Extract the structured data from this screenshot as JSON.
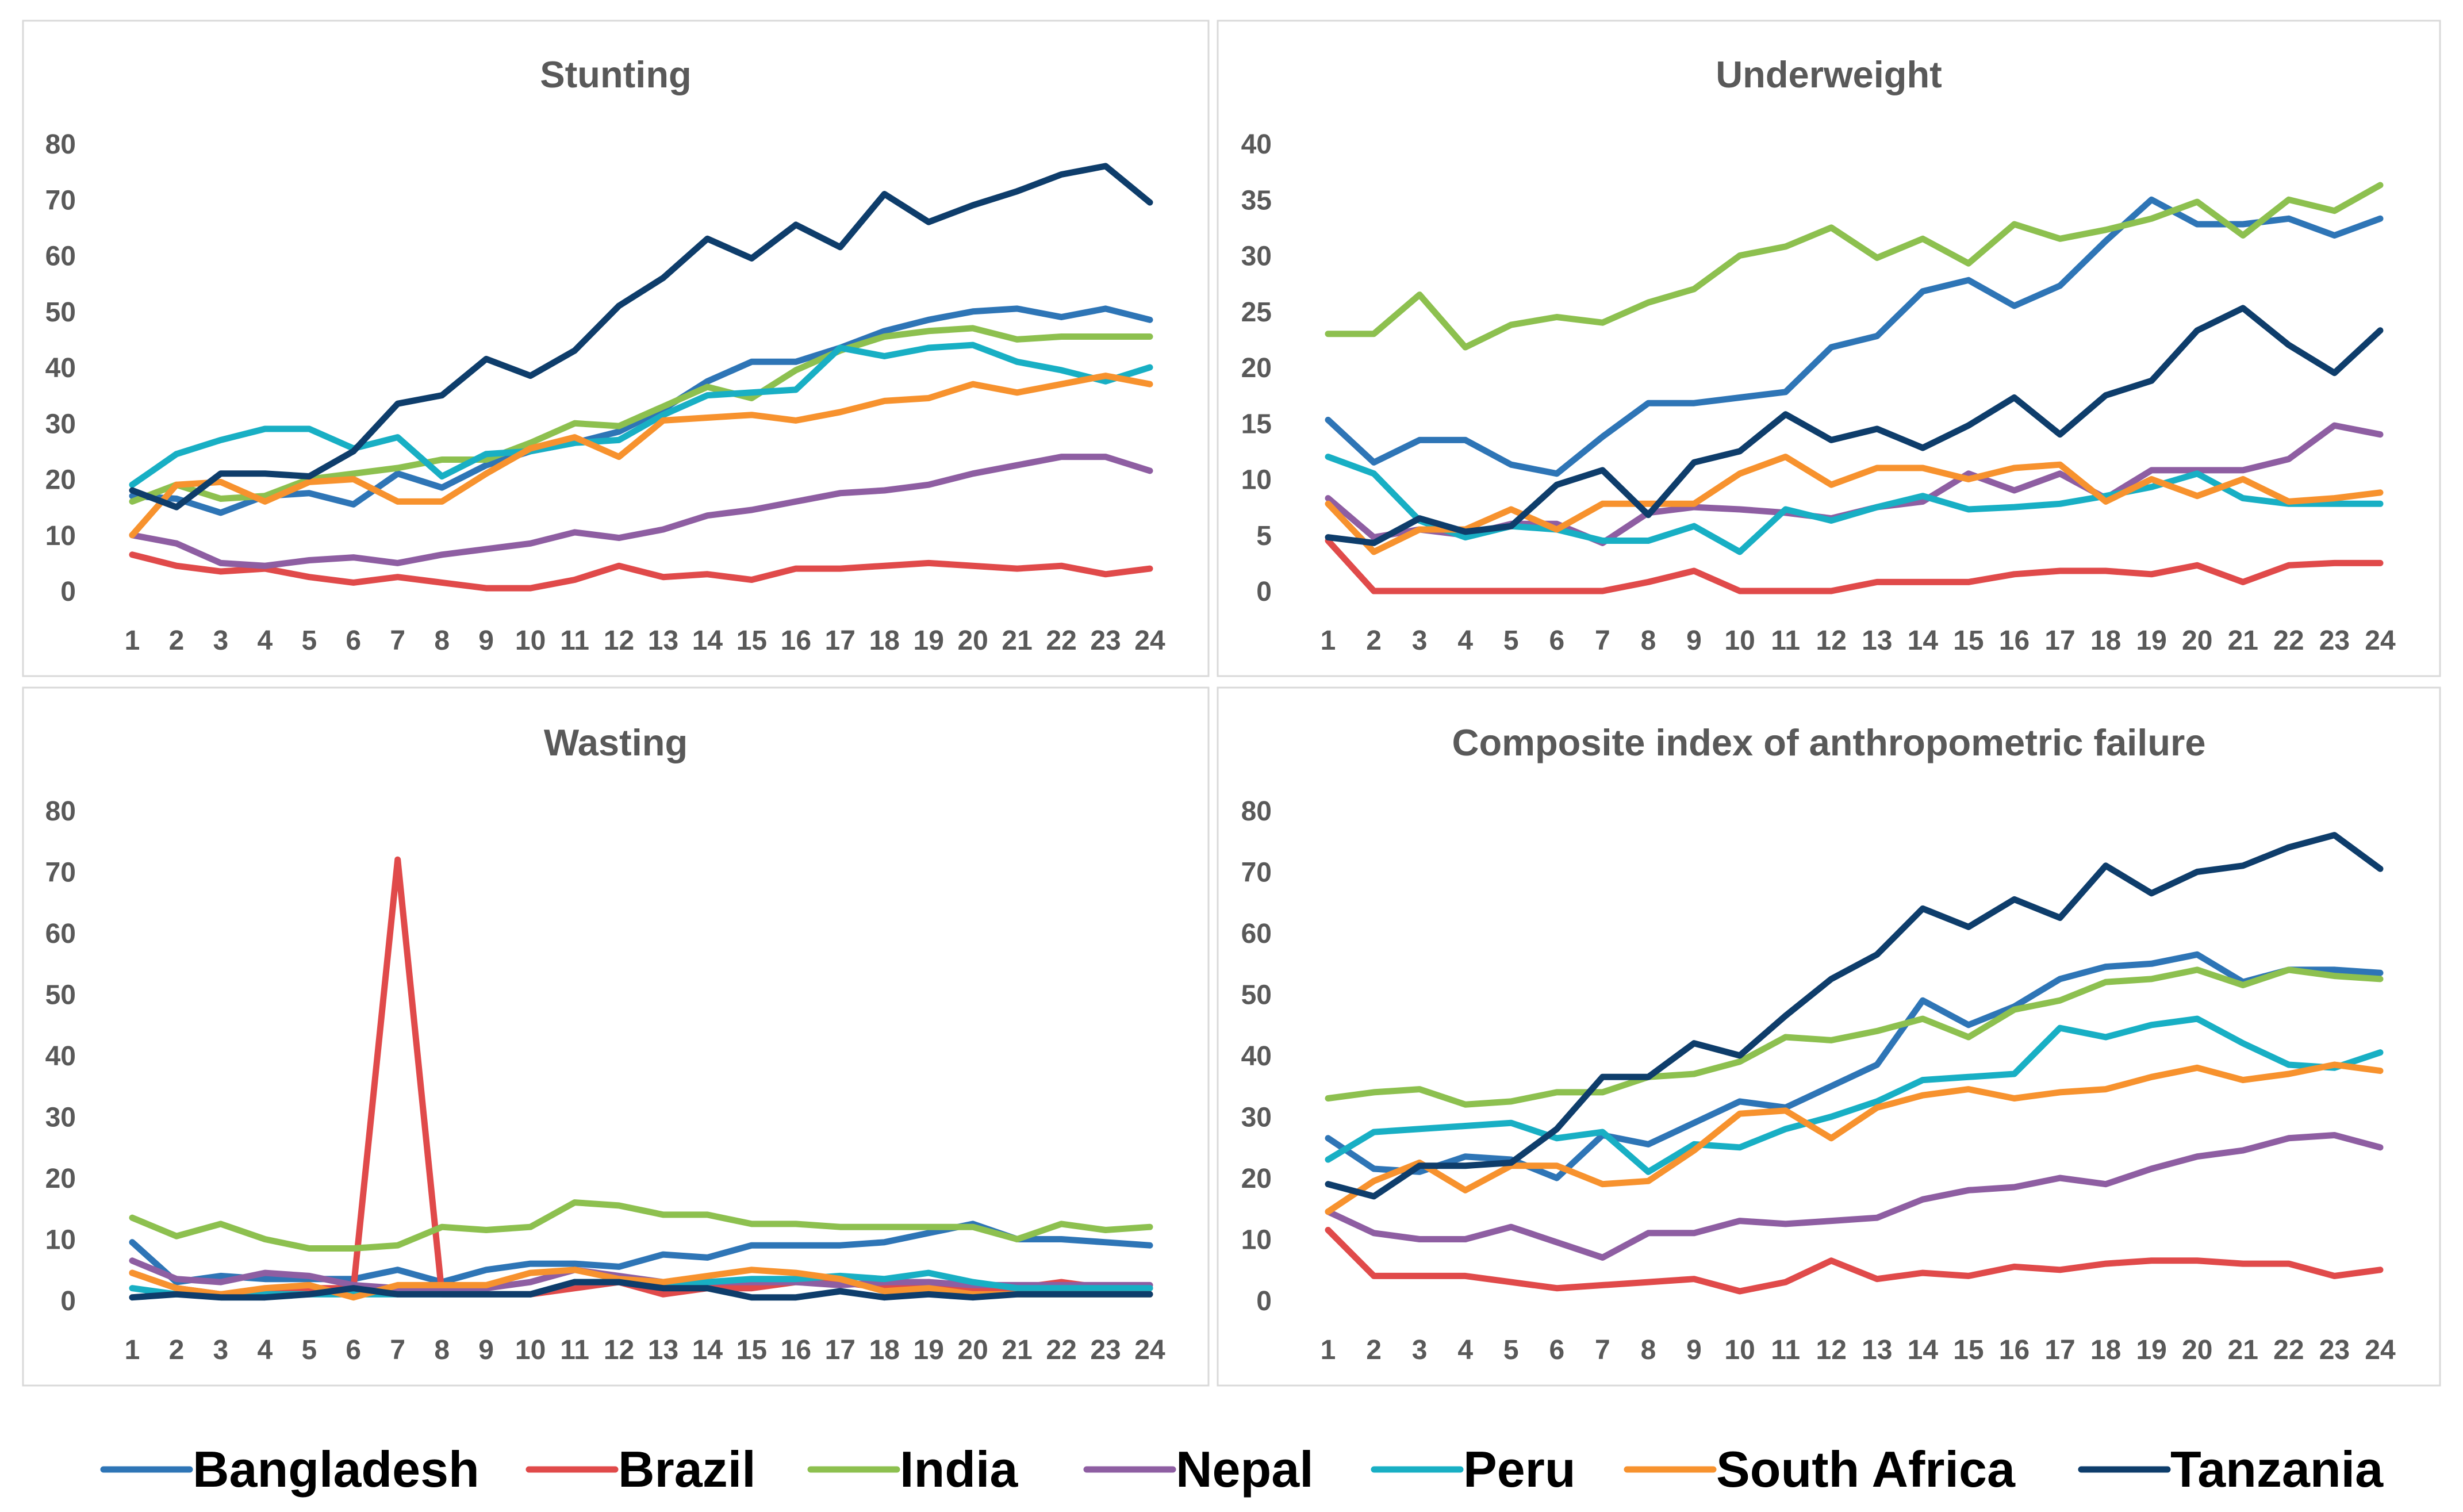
{
  "colors": {
    "Bangladesh": "#2E75B6",
    "Brazil": "#E04A4A",
    "India": "#8DC04F",
    "Nepal": "#8E5EA2",
    "Peru": "#18AFC4",
    "South Africa": "#F7922E",
    "Tanzania": "#0E3D6B"
  },
  "legend": [
    "Bangladesh",
    "Brazil",
    "India",
    "Nepal",
    "Peru",
    "South Africa",
    "Tanzania"
  ],
  "chart_data": [
    {
      "type": "line",
      "title": "Stunting",
      "x": [
        1,
        2,
        3,
        4,
        5,
        6,
        7,
        8,
        9,
        10,
        11,
        12,
        13,
        14,
        15,
        16,
        17,
        18,
        19,
        20,
        21,
        22,
        23,
        24
      ],
      "x_tick_labels": [
        "1",
        "2",
        "3",
        "4",
        "5",
        "6",
        "7",
        "8",
        "9",
        "10",
        "11",
        "12",
        "13",
        "14",
        "15",
        "16",
        "17",
        "18",
        "19",
        "20",
        "21",
        "22",
        "23",
        "24"
      ],
      "ylim": [
        0,
        80
      ],
      "y_ticks": [
        0,
        10,
        20,
        30,
        40,
        50,
        60,
        70,
        80
      ],
      "y_tick_labels": [
        "0",
        "10",
        "20",
        "30",
        "40",
        "50",
        "60",
        "70",
        "80"
      ],
      "series": [
        {
          "name": "Bangladesh",
          "values": [
            17,
            16.5,
            14,
            17,
            17.5,
            15.5,
            21,
            18.5,
            22.5,
            25,
            26.5,
            28.5,
            32.5,
            37.5,
            41,
            41,
            43.5,
            46.5,
            48.5,
            50,
            50.5,
            49,
            50.5,
            48.5
          ]
        },
        {
          "name": "Brazil",
          "values": [
            6.5,
            4.5,
            3.5,
            4,
            2.5,
            1.5,
            2.5,
            1.5,
            0.5,
            0.5,
            2,
            4.5,
            2.5,
            3,
            2,
            4,
            4,
            4.5,
            5,
            4.5,
            4,
            4.5,
            3,
            4
          ]
        },
        {
          "name": "India",
          "values": [
            16,
            19,
            16.5,
            17,
            20,
            21,
            22,
            23.5,
            23.5,
            26.5,
            30,
            29.5,
            33,
            36.5,
            34.5,
            39.5,
            43,
            45.5,
            46.5,
            47,
            45,
            45.5,
            45.5,
            45.5
          ]
        },
        {
          "name": "Nepal",
          "values": [
            10,
            8.5,
            5,
            4.5,
            5.5,
            6,
            5,
            6.5,
            7.5,
            8.5,
            10.5,
            9.5,
            11,
            13.5,
            14.5,
            16,
            17.5,
            18,
            19,
            21,
            22.5,
            24,
            24,
            21.5
          ]
        },
        {
          "name": "Peru",
          "values": [
            19,
            24.5,
            27,
            29,
            29,
            25.5,
            27.5,
            20.5,
            24.5,
            25,
            26.5,
            27,
            31.5,
            35,
            35.5,
            36,
            43.5,
            42,
            43.5,
            44,
            41,
            39.5,
            37.5,
            40
          ]
        },
        {
          "name": "South Africa",
          "values": [
            10,
            19,
            19.5,
            16,
            19.5,
            20,
            16,
            16,
            21,
            25.5,
            27.5,
            24,
            30.5,
            31,
            31.5,
            30.5,
            32,
            34,
            34.5,
            37,
            35.5,
            37,
            38.5,
            37
          ]
        },
        {
          "name": "Tanzania",
          "values": [
            18,
            15,
            21,
            21,
            20.5,
            25,
            33.5,
            35,
            41.5,
            38.5,
            43,
            51,
            56,
            63,
            59.5,
            65.5,
            61.5,
            71,
            66,
            69,
            71.5,
            74.5,
            76,
            69.5
          ]
        }
      ]
    },
    {
      "type": "line",
      "title": "Underweight",
      "x": [
        1,
        2,
        3,
        4,
        5,
        6,
        7,
        8,
        9,
        10,
        11,
        12,
        13,
        14,
        15,
        16,
        17,
        18,
        19,
        20,
        21,
        22,
        23,
        24
      ],
      "x_tick_labels": [
        "1",
        "2",
        "3",
        "4",
        "5",
        "6",
        "7",
        "8",
        "9",
        "10",
        "11",
        "12",
        "13",
        "14",
        "15",
        "16",
        "17",
        "18",
        "19",
        "20",
        "21",
        "22",
        "23",
        "24"
      ],
      "ylim": [
        0,
        40
      ],
      "y_ticks": [
        0,
        5,
        10,
        15,
        20,
        25,
        30,
        35,
        40
      ],
      "y_tick_labels": [
        "0",
        "5",
        "10",
        "15",
        "20",
        "25",
        "30",
        "35",
        "40"
      ],
      "series": [
        {
          "name": "Bangladesh",
          "values": [
            15.3,
            11.5,
            13.5,
            13.5,
            11.3,
            10.5,
            13.8,
            16.8,
            16.8,
            17.3,
            17.8,
            21.8,
            22.8,
            26.8,
            27.8,
            25.5,
            27.3,
            31.3,
            35,
            32.8,
            32.8,
            33.3,
            31.8,
            33.3
          ]
        },
        {
          "name": "Brazil",
          "values": [
            4.5,
            0,
            0,
            0,
            0,
            0,
            0,
            0.8,
            1.8,
            0,
            0,
            0,
            0.8,
            0.8,
            0.8,
            1.5,
            1.8,
            1.8,
            1.5,
            2.3,
            0.8,
            2.3,
            2.5,
            2.5
          ]
        },
        {
          "name": "India",
          "values": [
            23,
            23,
            26.5,
            21.8,
            23.8,
            24.5,
            24,
            25.8,
            27,
            30,
            30.8,
            32.5,
            29.8,
            31.5,
            29.3,
            32.8,
            31.5,
            32.3,
            33.3,
            34.8,
            31.8,
            35,
            34,
            36.3
          ]
        },
        {
          "name": "Nepal",
          "values": [
            8.3,
            4.8,
            5.5,
            5,
            6,
            6,
            4.3,
            7,
            7.5,
            7.3,
            7,
            6.5,
            7.5,
            8,
            10.5,
            9,
            10.5,
            8.3,
            10.8,
            10.8,
            10.8,
            11.8,
            14.8,
            14
          ]
        },
        {
          "name": "Peru",
          "values": [
            12,
            10.5,
            6.3,
            4.8,
            5.8,
            5.5,
            4.5,
            4.5,
            5.8,
            3.5,
            7.3,
            6.3,
            7.5,
            8.5,
            7.3,
            7.5,
            7.8,
            8.5,
            9.3,
            10.5,
            8.3,
            7.8,
            7.8,
            7.8
          ]
        },
        {
          "name": "South Africa",
          "values": [
            7.8,
            3.5,
            5.5,
            5.5,
            7.3,
            5.5,
            7.8,
            7.8,
            7.8,
            10.5,
            12,
            9.5,
            11,
            11,
            10,
            11,
            11.3,
            8,
            10,
            8.5,
            10,
            8,
            8.3,
            8.8
          ]
        },
        {
          "name": "Tanzania",
          "values": [
            4.8,
            4.3,
            6.5,
            5.3,
            5.8,
            9.5,
            10.8,
            6.8,
            11.5,
            12.5,
            15.8,
            13.5,
            14.5,
            12.8,
            14.8,
            17.3,
            14,
            17.5,
            18.8,
            23.3,
            25.3,
            22,
            19.5,
            23.3
          ]
        }
      ]
    },
    {
      "type": "line",
      "title": "Wasting",
      "x": [
        1,
        2,
        3,
        4,
        5,
        6,
        7,
        8,
        9,
        10,
        11,
        12,
        13,
        14,
        15,
        16,
        17,
        18,
        19,
        20,
        21,
        22,
        23,
        24
      ],
      "x_tick_labels": [
        "1",
        "2",
        "3",
        "4",
        "5",
        "6",
        "7",
        "8",
        "9",
        "10",
        "11",
        "12",
        "13",
        "14",
        "15",
        "16",
        "17",
        "18",
        "19",
        "20",
        "21",
        "22",
        "23",
        "24"
      ],
      "ylim": [
        0,
        80
      ],
      "y_ticks": [
        0,
        10,
        20,
        30,
        40,
        50,
        60,
        70,
        80
      ],
      "y_tick_labels": [
        "0",
        "10",
        "20",
        "30",
        "40",
        "50",
        "60",
        "70",
        "80"
      ],
      "series": [
        {
          "name": "Bangladesh",
          "values": [
            9.5,
            3,
            4,
            3.5,
            3.5,
            3.5,
            5,
            3,
            5,
            6,
            6,
            5.5,
            7.5,
            7,
            9,
            9,
            9,
            9.5,
            11,
            12.5,
            10,
            10,
            9.5,
            9
          ]
        },
        {
          "name": "Brazil",
          "values": [
            4.5,
            2,
            1,
            1,
            2,
            2,
            72,
            1,
            1,
            1,
            2,
            3,
            1,
            2,
            2,
            3,
            3,
            2,
            3,
            2,
            2,
            3,
            2,
            2
          ]
        },
        {
          "name": "India",
          "values": [
            13.5,
            10.5,
            12.5,
            10,
            8.5,
            8.5,
            9,
            12,
            11.5,
            12,
            16,
            15.5,
            14,
            14,
            12.5,
            12.5,
            12,
            12,
            12,
            12,
            10,
            12.5,
            11.5,
            12
          ]
        },
        {
          "name": "Nepal",
          "values": [
            6.5,
            3.5,
            3,
            4.5,
            4,
            2.5,
            2,
            2,
            2,
            3,
            5,
            4,
            3,
            3,
            3,
            3,
            2.5,
            3,
            3,
            2.5,
            2.5,
            2.5,
            2.5,
            2.5
          ]
        },
        {
          "name": "Peru",
          "values": [
            2,
            1,
            1,
            1,
            1,
            1,
            1,
            1,
            1,
            1,
            3,
            3,
            3,
            3,
            3.5,
            3.5,
            4,
            3.5,
            4.5,
            3,
            2,
            2,
            2,
            2
          ]
        },
        {
          "name": "South Africa",
          "values": [
            4.5,
            2,
            1,
            2,
            2.5,
            0.5,
            2.5,
            2.5,
            2.5,
            4.5,
            5,
            3.5,
            3,
            4,
            5,
            4.5,
            3.5,
            1.5,
            2,
            1,
            1,
            1,
            1,
            1
          ]
        },
        {
          "name": "Tanzania",
          "values": [
            0.5,
            1,
            0.5,
            0.5,
            1,
            2,
            1,
            1,
            1,
            1,
            3,
            3,
            2,
            2,
            0.5,
            0.5,
            1.5,
            0.5,
            1,
            0.5,
            1,
            1,
            1,
            1
          ]
        }
      ]
    },
    {
      "type": "line",
      "title": "Composite index of anthropometric failure",
      "x": [
        1,
        2,
        3,
        4,
        5,
        6,
        7,
        8,
        9,
        10,
        11,
        12,
        13,
        14,
        15,
        16,
        17,
        18,
        19,
        20,
        21,
        22,
        23,
        24
      ],
      "x_tick_labels": [
        "1",
        "2",
        "3",
        "4",
        "5",
        "6",
        "7",
        "8",
        "9",
        "10",
        "11",
        "12",
        "13",
        "14",
        "15",
        "16",
        "17",
        "18",
        "19",
        "20",
        "21",
        "22",
        "23",
        "24"
      ],
      "ylim": [
        0,
        80
      ],
      "y_ticks": [
        0,
        10,
        20,
        30,
        40,
        50,
        60,
        70,
        80
      ],
      "y_tick_labels": [
        "0",
        "10",
        "20",
        "30",
        "40",
        "50",
        "60",
        "70",
        "80"
      ],
      "series": [
        {
          "name": "Bangladesh",
          "values": [
            26.5,
            21.5,
            21,
            23.5,
            23,
            20,
            27,
            25.5,
            29,
            32.5,
            31.5,
            35,
            38.5,
            49,
            45,
            48,
            52.5,
            54.5,
            55,
            56.5,
            52,
            54,
            54,
            53.5
          ]
        },
        {
          "name": "Brazil",
          "values": [
            11.5,
            4,
            4,
            4,
            3,
            2,
            2.5,
            3,
            3.5,
            1.5,
            3,
            6.5,
            3.5,
            4.5,
            4,
            5.5,
            5,
            6,
            6.5,
            6.5,
            6,
            6,
            4,
            5
          ]
        },
        {
          "name": "India",
          "values": [
            33,
            34,
            34.5,
            32,
            32.5,
            34,
            34,
            36.5,
            37,
            39,
            43,
            42.5,
            44,
            46,
            43,
            47.5,
            49,
            52,
            52.5,
            54,
            51.5,
            54,
            53,
            52.5
          ]
        },
        {
          "name": "Nepal",
          "values": [
            14.5,
            11,
            10,
            10,
            12,
            9.5,
            7,
            11,
            11,
            13,
            12.5,
            13,
            13.5,
            16.5,
            18,
            18.5,
            20,
            19,
            21.5,
            23.5,
            24.5,
            26.5,
            27,
            25
          ]
        },
        {
          "name": "Peru",
          "values": [
            23,
            27.5,
            28,
            28.5,
            29,
            26.5,
            27.5,
            21,
            25.5,
            25,
            28,
            30,
            32.5,
            36,
            36.5,
            37,
            44.5,
            43,
            45,
            46,
            42,
            38.5,
            38,
            40.5
          ]
        },
        {
          "name": "South Africa",
          "values": [
            14.5,
            19.5,
            22.5,
            18,
            22,
            22,
            19,
            19.5,
            24.5,
            30.5,
            31,
            26.5,
            31.5,
            33.5,
            34.5,
            33,
            34,
            34.5,
            36.5,
            38,
            36,
            37,
            38.5,
            37.5
          ]
        },
        {
          "name": "Tanzania",
          "values": [
            19,
            17,
            22,
            22,
            22.5,
            28,
            36.5,
            36.5,
            42,
            40,
            46.5,
            52.5,
            56.5,
            64,
            61,
            65.5,
            62.5,
            71,
            66.5,
            70,
            71,
            74,
            76,
            70.5
          ]
        }
      ]
    }
  ]
}
